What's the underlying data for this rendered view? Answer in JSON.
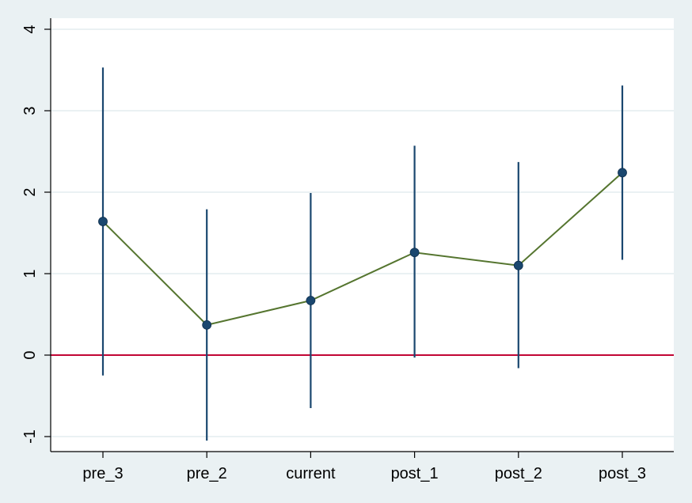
{
  "chart_data": {
    "type": "line",
    "categories": [
      "pre_3",
      "pre_2",
      "current",
      "post_1",
      "post_2",
      "post_3"
    ],
    "series": [
      {
        "values": [
          1.64,
          0.37,
          0.67,
          1.26,
          1.1,
          2.24
        ],
        "ci_low": [
          -0.25,
          -1.05,
          -0.65,
          -0.03,
          -0.16,
          1.17
        ],
        "ci_high": [
          3.53,
          1.79,
          1.99,
          2.57,
          2.37,
          3.31
        ]
      }
    ],
    "yticks": [
      "-1",
      "0",
      "1",
      "2",
      "3",
      "4"
    ],
    "ylim": [
      -1.15,
      4.15
    ],
    "reference_line_y": 0,
    "grid": true,
    "colors": {
      "background": "#eaf1f3",
      "plot_area": "#ffffff",
      "grid": "#eaf1f3",
      "ci_bar": "#1a476f",
      "marker": "#1a476f",
      "line": "#55752f",
      "reference_line": "#c10534",
      "axis": "#000000"
    }
  }
}
